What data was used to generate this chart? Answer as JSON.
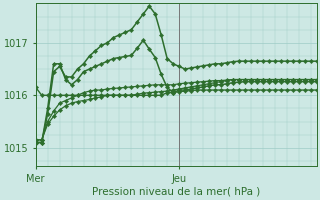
{
  "bg_color": "#cde8e4",
  "grid_color": "#9eccc7",
  "line_color": "#2d6e2d",
  "xlabel": "Pression niveau de la mer( hPa )",
  "yticks": [
    1015,
    1016,
    1017
  ],
  "ylim": [
    1014.65,
    1017.75
  ],
  "xlim": [
    0,
    47
  ],
  "mer_x": 0,
  "jeu_x": 24,
  "vline_color": "#777777",
  "series": [
    [
      1016.15,
      1016.0,
      1016.0,
      1016.0,
      1016.0,
      1016.0,
      1016.0,
      1016.0,
      1016.0,
      1016.0,
      1016.0,
      1016.0,
      1016.0,
      1016.0,
      1016.0,
      1016.0,
      1016.0,
      1016.0,
      1016.0,
      1016.0,
      1016.0,
      1016.0,
      1016.05,
      1016.05,
      1016.07,
      1016.08,
      1016.09,
      1016.1,
      1016.1,
      1016.1,
      1016.1,
      1016.1,
      1016.1,
      1016.1,
      1016.1,
      1016.1,
      1016.1,
      1016.1,
      1016.1,
      1016.1,
      1016.1,
      1016.1,
      1016.1,
      1016.1,
      1016.1,
      1016.1,
      1016.1,
      1016.1
    ],
    [
      1015.15,
      1015.15,
      1015.5,
      1015.7,
      1015.85,
      1015.9,
      1015.95,
      1016.0,
      1016.05,
      1016.08,
      1016.1,
      1016.1,
      1016.12,
      1016.13,
      1016.14,
      1016.15,
      1016.16,
      1016.17,
      1016.18,
      1016.19,
      1016.2,
      1016.2,
      1016.2,
      1016.2,
      1016.22,
      1016.23,
      1016.24,
      1016.25,
      1016.26,
      1016.27,
      1016.28,
      1016.28,
      1016.29,
      1016.3,
      1016.3,
      1016.3,
      1016.3,
      1016.3,
      1016.3,
      1016.3,
      1016.3,
      1016.3,
      1016.3,
      1016.3,
      1016.3,
      1016.3,
      1016.3,
      1016.3
    ],
    [
      1015.15,
      1015.15,
      1015.45,
      1015.6,
      1015.72,
      1015.8,
      1015.85,
      1015.88,
      1015.9,
      1015.92,
      1015.95,
      1015.97,
      1016.0,
      1016.0,
      1016.0,
      1016.0,
      1016.0,
      1016.02,
      1016.04,
      1016.05,
      1016.06,
      1016.07,
      1016.08,
      1016.1,
      1016.12,
      1016.14,
      1016.16,
      1016.18,
      1016.2,
      1016.22,
      1016.24,
      1016.26,
      1016.28,
      1016.3,
      1016.3,
      1016.3,
      1016.3,
      1016.3,
      1016.3,
      1016.3,
      1016.3,
      1016.3,
      1016.3,
      1016.3,
      1016.3,
      1016.3,
      1016.3,
      1016.3
    ],
    [
      1015.1,
      1015.1,
      1015.65,
      1016.45,
      1016.55,
      1016.35,
      1016.35,
      1016.5,
      1016.6,
      1016.75,
      1016.85,
      1016.95,
      1017.0,
      1017.1,
      1017.15,
      1017.2,
      1017.25,
      1017.4,
      1017.55,
      1017.7,
      1017.55,
      1017.15,
      1016.7,
      1016.6,
      1016.55,
      1016.5,
      1016.52,
      1016.54,
      1016.56,
      1016.58,
      1016.6,
      1016.6,
      1016.62,
      1016.64,
      1016.65,
      1016.65,
      1016.65,
      1016.65,
      1016.65,
      1016.65,
      1016.65,
      1016.65,
      1016.65,
      1016.65,
      1016.65,
      1016.65,
      1016.65,
      1016.65
    ],
    [
      1015.1,
      1015.1,
      1015.75,
      1016.6,
      1016.6,
      1016.3,
      1016.2,
      1016.3,
      1016.45,
      1016.5,
      1016.55,
      1016.6,
      1016.65,
      1016.7,
      1016.72,
      1016.74,
      1016.76,
      1016.9,
      1017.05,
      1016.88,
      1016.72,
      1016.4,
      1016.15,
      1016.05,
      1016.1,
      1016.1,
      1016.12,
      1016.14,
      1016.16,
      1016.18,
      1016.2,
      1016.2,
      1016.22,
      1016.24,
      1016.25,
      1016.26,
      1016.26,
      1016.26,
      1016.26,
      1016.26,
      1016.26,
      1016.26,
      1016.26,
      1016.26,
      1016.26,
      1016.26,
      1016.26,
      1016.26
    ]
  ],
  "series_lw": [
    1.0,
    0.9,
    0.9,
    1.1,
    1.1
  ],
  "marker": "D",
  "ms": 2.2,
  "figsize": [
    3.2,
    2.0
  ],
  "dpi": 100
}
